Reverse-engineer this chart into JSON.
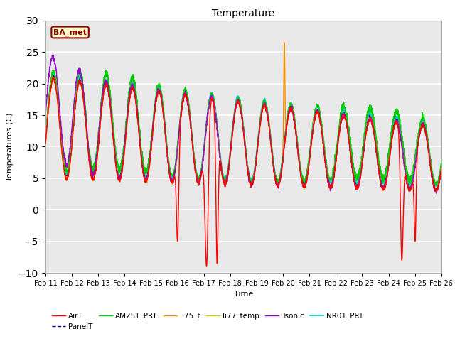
{
  "title": "Temperature",
  "xlabel": "Time",
  "ylabel": "Temperatures (C)",
  "ylim": [
    -10,
    30
  ],
  "x_tick_labels": [
    "Feb 11",
    "Feb 12",
    "Feb 13",
    "Feb 14",
    "Feb 15",
    "Feb 16",
    "Feb 17",
    "Feb 18",
    "Feb 19",
    "Feb 20",
    "Feb 21",
    "Feb 22",
    "Feb 23",
    "Feb 24",
    "Feb 25",
    "Feb 26"
  ],
  "series": {
    "AirT": {
      "color": "#ff0000",
      "lw": 1.0,
      "ls": "-",
      "zorder": 3
    },
    "PanelT": {
      "color": "#00008b",
      "lw": 1.0,
      "ls": "--",
      "zorder": 2
    },
    "AM25T_PRT": {
      "color": "#00cc00",
      "lw": 1.0,
      "ls": "-",
      "zorder": 2
    },
    "li75_t": {
      "color": "#ff8c00",
      "lw": 1.0,
      "ls": "-",
      "zorder": 2
    },
    "li77_temp": {
      "color": "#cccc00",
      "lw": 1.0,
      "ls": "-",
      "zorder": 2
    },
    "Tsonic": {
      "color": "#9900cc",
      "lw": 1.0,
      "ls": "-",
      "zorder": 2
    },
    "NR01_PRT": {
      "color": "#00cccc",
      "lw": 1.2,
      "ls": "-",
      "zorder": 1
    }
  },
  "annotation_text": "BA_met",
  "annotation_color": "#8b0000",
  "annotation_bg": "#ffffcc",
  "bg_color": "#e8e8e8",
  "fig_bg": "#ffffff",
  "grid_color": "#ffffff",
  "yticks": [
    -10,
    -5,
    0,
    5,
    10,
    15,
    20,
    25,
    30
  ],
  "n_points": 2880
}
